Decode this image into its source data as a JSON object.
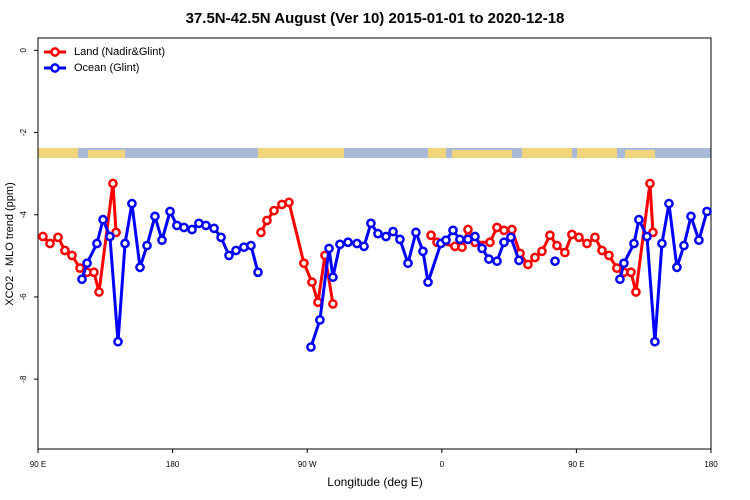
{
  "chart_data": {
    "type": "line",
    "title": "37.5N-42.5N August (Ver 10)   2015-01-01 to 2020-12-18",
    "x_label": "Longitude (deg E)",
    "y_label": "XCO2 - MLO trend (ppm)",
    "xlim": [
      90,
      540
    ],
    "ylim": [
      -9.7,
      0.3
    ],
    "xticks": [
      {
        "value": 90,
        "label": "90 E"
      },
      180,
      {
        "value": 270,
        "label": "90 W"
      },
      {
        "value": 360,
        "label": "0"
      },
      {
        "value": 450,
        "label": "90 E"
      },
      {
        "value": 540,
        "label": "180"
      }
    ],
    "yticks": [
      0,
      -2,
      -4,
      -6,
      -8
    ],
    "legend": "top-left",
    "series": [
      {
        "name": "Land (Nadir&Glint)",
        "color": "#ff0000",
        "x": [
          93.3,
          98.0,
          103.4,
          108.0,
          112.7,
          118.1,
          122.8,
          127.4,
          130.8,
          140.1,
          142.2,
          null,
          239.1,
          243.1,
          247.8,
          253.1,
          257.8,
          267.8,
          273.2,
          277.2,
          281.9,
          287.2,
          null,
          352.8,
          356.8,
          368.8,
          373.5,
          377.5,
          382.2,
          392.2,
          396.9,
          401.6,
          406.9,
          412.3,
          417.6,
          422.3,
          427.0,
          432.3,
          437.0,
          442.3,
          447.0,
          451.7,
          457.1,
          462.4,
          467.1,
          471.8,
          477.1,
          481.8,
          486.5,
          489.8,
          499.2,
          501.2
        ],
        "values": [
          -4.53,
          -4.7,
          -4.55,
          -4.87,
          -4.99,
          -5.3,
          -5.4,
          -5.4,
          -5.88,
          -3.24,
          -4.43,
          null,
          -4.43,
          -4.14,
          -3.9,
          -3.75,
          -3.7,
          -5.18,
          -5.64,
          -6.13,
          -4.99,
          -6.17,
          null,
          -4.5,
          -4.67,
          -4.77,
          -4.79,
          -4.36,
          -4.67,
          -4.67,
          -4.31,
          -4.38,
          -4.36,
          -4.94,
          -5.21,
          -5.04,
          -4.89,
          -4.5,
          -4.75,
          -4.92,
          -4.48,
          -4.55,
          -4.7,
          -4.55,
          -4.87,
          -4.99,
          -5.3,
          -5.4,
          -5.4,
          -5.88,
          -3.24,
          -4.43
        ]
      },
      {
        "name": "Ocean (Glint)",
        "color": "#0000ff",
        "x": [
          119.4,
          122.8,
          129.4,
          133.5,
          138.1,
          143.5,
          148.2,
          152.8,
          158.2,
          162.9,
          168.2,
          172.9,
          178.3,
          182.9,
          187.6,
          193.0,
          197.6,
          202.3,
          207.7,
          212.4,
          217.7,
          222.4,
          227.7,
          232.4,
          237.1,
          null,
          272.5,
          278.5,
          284.6,
          287.2,
          291.9,
          297.3,
          303.3,
          308.0,
          312.6,
          317.3,
          322.7,
          327.4,
          332.0,
          337.4,
          342.7,
          347.4,
          350.8,
          359.4,
          362.8,
          367.5,
          372.1,
          377.5,
          382.2,
          386.9,
          391.5,
          396.9,
          401.6,
          406.2,
          411.6,
          null,
          435.7,
          null,
          479.1,
          481.8,
          488.5,
          491.8,
          497.2,
          502.5,
          507.2,
          511.9,
          517.2,
          521.9,
          526.6,
          531.9,
          537.3
        ],
        "values": [
          -5.57,
          -5.18,
          -4.7,
          -4.12,
          -4.53,
          -7.09,
          -4.7,
          -3.73,
          -5.28,
          -4.75,
          -4.04,
          -4.62,
          -3.92,
          -4.26,
          -4.31,
          -4.36,
          -4.21,
          -4.26,
          -4.33,
          -4.55,
          -4.99,
          -4.87,
          -4.79,
          -4.75,
          -5.4,
          null,
          -7.22,
          -6.56,
          -4.82,
          -5.52,
          -4.72,
          -4.67,
          -4.7,
          -4.77,
          -4.21,
          -4.46,
          -4.53,
          -4.41,
          -4.6,
          -5.18,
          -4.43,
          -4.89,
          -5.64,
          -4.7,
          -4.62,
          -4.38,
          -4.6,
          -4.6,
          -4.53,
          -4.82,
          -5.08,
          -5.13,
          -4.67,
          -4.55,
          -5.11,
          null,
          -5.13,
          null,
          -5.57,
          -5.18,
          -4.7,
          -4.12,
          -4.53,
          -7.09,
          -4.7,
          -3.73,
          -5.28,
          -4.75,
          -4.04,
          -4.62,
          -3.92
        ]
      }
    ]
  }
}
